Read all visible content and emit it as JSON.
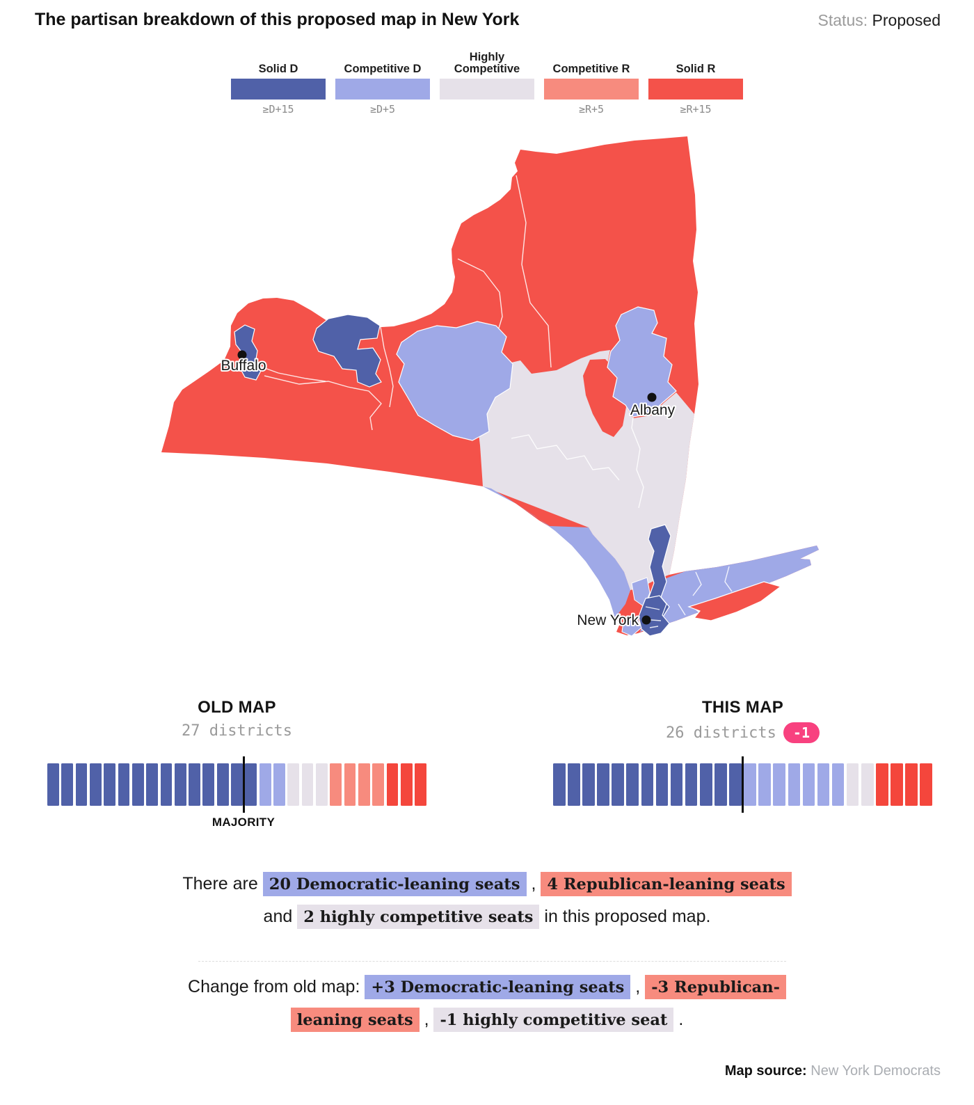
{
  "header": {
    "title": "The partisan breakdown of this proposed map in New York",
    "status_label": "Status:",
    "status_value": "Proposed"
  },
  "legend": {
    "items": [
      {
        "label": "Solid D",
        "sublabel": "≥D+15",
        "key": "solid_d"
      },
      {
        "label": "Competitive D",
        "sublabel": "≥D+5",
        "key": "competitive_d"
      },
      {
        "label": "Highly Competitive",
        "sublabel": "",
        "key": "highly_competitive"
      },
      {
        "label": "Competitive R",
        "sublabel": "≥R+5",
        "key": "competitive_r"
      },
      {
        "label": "Solid R",
        "sublabel": "≥R+15",
        "key": "solid_r"
      }
    ]
  },
  "map": {
    "cities": [
      {
        "name": "Buffalo"
      },
      {
        "name": "Albany"
      },
      {
        "name": "New York"
      }
    ]
  },
  "strips": {
    "old": {
      "title": "OLD MAP",
      "subtitle": "27 districts",
      "majority_label": "MAJORITY",
      "majority_index": 14,
      "total": 27,
      "segments": [
        {
          "key": "solid_d",
          "count": 15
        },
        {
          "key": "competitive_d",
          "count": 2
        },
        {
          "key": "highly_competitive",
          "count": 3
        },
        {
          "key": "competitive_r",
          "count": 4
        },
        {
          "key": "solid_r_bar",
          "count": 3
        }
      ]
    },
    "new": {
      "title": "THIS MAP",
      "subtitle": "26 districts",
      "badge": "-1",
      "majority_index": 13,
      "total": 26,
      "segments": [
        {
          "key": "solid_d",
          "count": 13
        },
        {
          "key": "competitive_d",
          "count": 7
        },
        {
          "key": "highly_competitive",
          "count": 2
        },
        {
          "key": "solid_r_bar",
          "count": 4
        }
      ]
    }
  },
  "summary": {
    "line1": [
      {
        "text": "There are ",
        "hl": null
      },
      {
        "text": "20 Democratic-leaning seats",
        "hl": "d"
      },
      {
        "text": " , ",
        "hl": null
      },
      {
        "text": "4 Republican-leaning seats",
        "hl": "r"
      }
    ],
    "line2": [
      {
        "text": "and ",
        "hl": null
      },
      {
        "text": "2 highly competitive seats",
        "hl": "hc"
      },
      {
        "text": " in this proposed map.",
        "hl": null
      }
    ]
  },
  "change": {
    "line1": [
      {
        "text": "Change from old map: ",
        "hl": null
      },
      {
        "text": "+3 Democratic-leaning seats",
        "hl": "d"
      },
      {
        "text": " , ",
        "hl": null
      },
      {
        "text": "-3 Republican-",
        "hl": "r"
      }
    ],
    "line2": [
      {
        "text": "leaning seats",
        "hl": "r"
      },
      {
        "text": " , ",
        "hl": null
      },
      {
        "text": "-1 highly competitive seat",
        "hl": "hc"
      },
      {
        "text": " .",
        "hl": null
      }
    ]
  },
  "source": {
    "label": "Map source:",
    "value": "New York Democrats"
  },
  "colors": {
    "solid_d": "#5061a8",
    "competitive_d": "#9fa9e7",
    "highly_competitive": "#e6e1e9",
    "competitive_r": "#f78b7e",
    "solid_r": "#f4524a",
    "solid_r_bar": "#f4463c",
    "badge_pink": "#f8417f"
  },
  "chart_data": [
    {
      "type": "bar",
      "title": "OLD MAP",
      "subtitle": "27 districts",
      "categories": [
        "Solid D",
        "Competitive D",
        "Highly Competitive",
        "Competitive R",
        "Solid R"
      ],
      "values": [
        15,
        2,
        3,
        4,
        3
      ],
      "majority_marker_after_seat": 14,
      "annotation": "MAJORITY"
    },
    {
      "type": "bar",
      "title": "THIS MAP",
      "subtitle": "26 districts",
      "change_badge": "-1",
      "categories": [
        "Solid D",
        "Competitive D",
        "Highly Competitive",
        "Competitive R",
        "Solid R"
      ],
      "values": [
        13,
        7,
        2,
        0,
        4
      ],
      "majority_marker_after_seat": 13
    },
    {
      "type": "heatmap",
      "title": "New York proposed congressional map by partisan lean",
      "categories": [
        "Solid D (≥D+15)",
        "Competitive D (≥D+5)",
        "Highly Competitive",
        "Competitive R (≥R+5)",
        "Solid R (≥R+15)"
      ],
      "values": [
        13,
        7,
        2,
        0,
        4
      ],
      "cities": [
        "Buffalo",
        "Albany",
        "New York"
      ]
    }
  ]
}
